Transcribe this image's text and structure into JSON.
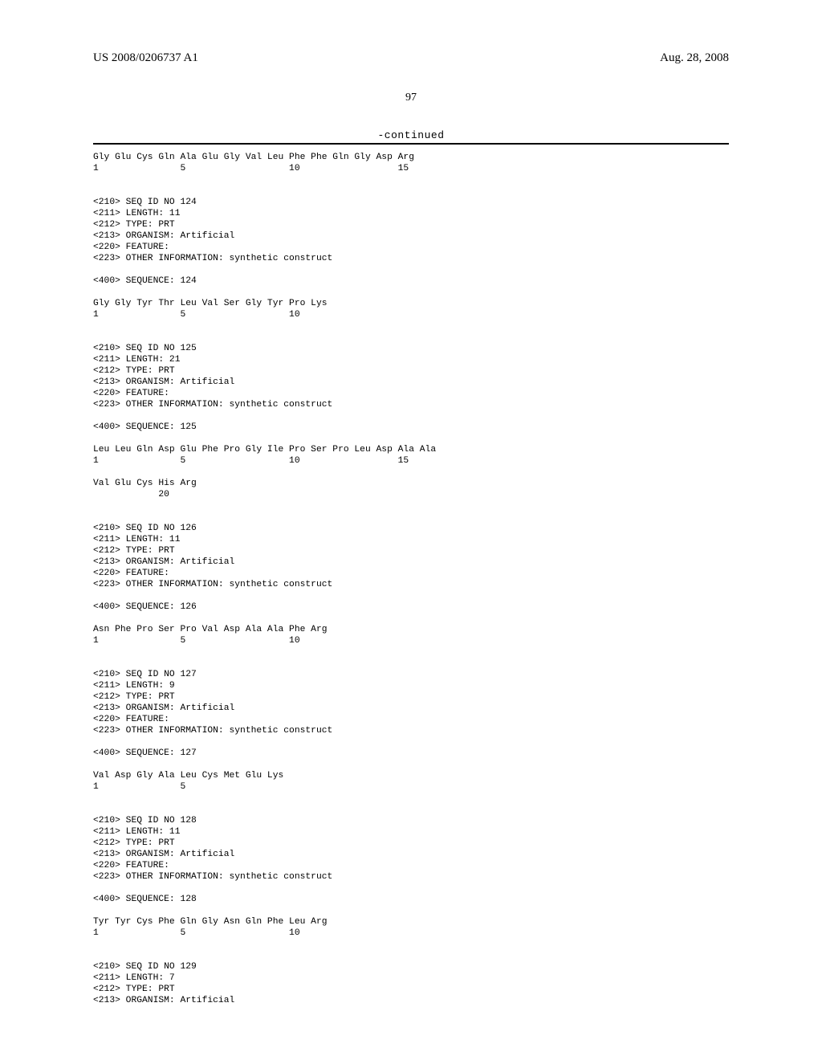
{
  "header": {
    "pub_number": "US 2008/0206737 A1",
    "pub_date": "Aug. 28, 2008"
  },
  "page_number": "97",
  "continued_label": "-continued",
  "entries": [
    {
      "id": 123,
      "prev_seq_lines": [
        "Gly Glu Cys Gln Ala Glu Gly Val Leu Phe Phe Gln Gly Asp Arg",
        "1               5                   10                  15"
      ]
    },
    {
      "id": 124,
      "header_lines": [
        "<210> SEQ ID NO 124",
        "<211> LENGTH: 11",
        "<212> TYPE: PRT",
        "<213> ORGANISM: Artificial",
        "<220> FEATURE:",
        "<223> OTHER INFORMATION: synthetic construct"
      ],
      "seq_label": "<400> SEQUENCE: 124",
      "seq_lines": [
        "Gly Gly Tyr Thr Leu Val Ser Gly Tyr Pro Lys",
        "1               5                   10"
      ]
    },
    {
      "id": 125,
      "header_lines": [
        "<210> SEQ ID NO 125",
        "<211> LENGTH: 21",
        "<212> TYPE: PRT",
        "<213> ORGANISM: Artificial",
        "<220> FEATURE:",
        "<223> OTHER INFORMATION: synthetic construct"
      ],
      "seq_label": "<400> SEQUENCE: 125",
      "seq_lines": [
        "Leu Leu Gln Asp Glu Phe Pro Gly Ile Pro Ser Pro Leu Asp Ala Ala",
        "1               5                   10                  15",
        "",
        "Val Glu Cys His Arg",
        "            20"
      ]
    },
    {
      "id": 126,
      "header_lines": [
        "<210> SEQ ID NO 126",
        "<211> LENGTH: 11",
        "<212> TYPE: PRT",
        "<213> ORGANISM: Artificial",
        "<220> FEATURE:",
        "<223> OTHER INFORMATION: synthetic construct"
      ],
      "seq_label": "<400> SEQUENCE: 126",
      "seq_lines": [
        "Asn Phe Pro Ser Pro Val Asp Ala Ala Phe Arg",
        "1               5                   10"
      ]
    },
    {
      "id": 127,
      "header_lines": [
        "<210> SEQ ID NO 127",
        "<211> LENGTH: 9",
        "<212> TYPE: PRT",
        "<213> ORGANISM: Artificial",
        "<220> FEATURE:",
        "<223> OTHER INFORMATION: synthetic construct"
      ],
      "seq_label": "<400> SEQUENCE: 127",
      "seq_lines": [
        "Val Asp Gly Ala Leu Cys Met Glu Lys",
        "1               5"
      ]
    },
    {
      "id": 128,
      "header_lines": [
        "<210> SEQ ID NO 128",
        "<211> LENGTH: 11",
        "<212> TYPE: PRT",
        "<213> ORGANISM: Artificial",
        "<220> FEATURE:",
        "<223> OTHER INFORMATION: synthetic construct"
      ],
      "seq_label": "<400> SEQUENCE: 128",
      "seq_lines": [
        "Tyr Tyr Cys Phe Gln Gly Asn Gln Phe Leu Arg",
        "1               5                   10"
      ]
    },
    {
      "id": 129,
      "header_lines": [
        "<210> SEQ ID NO 129",
        "<211> LENGTH: 7",
        "<212> TYPE: PRT",
        "<213> ORGANISM: Artificial"
      ]
    }
  ]
}
